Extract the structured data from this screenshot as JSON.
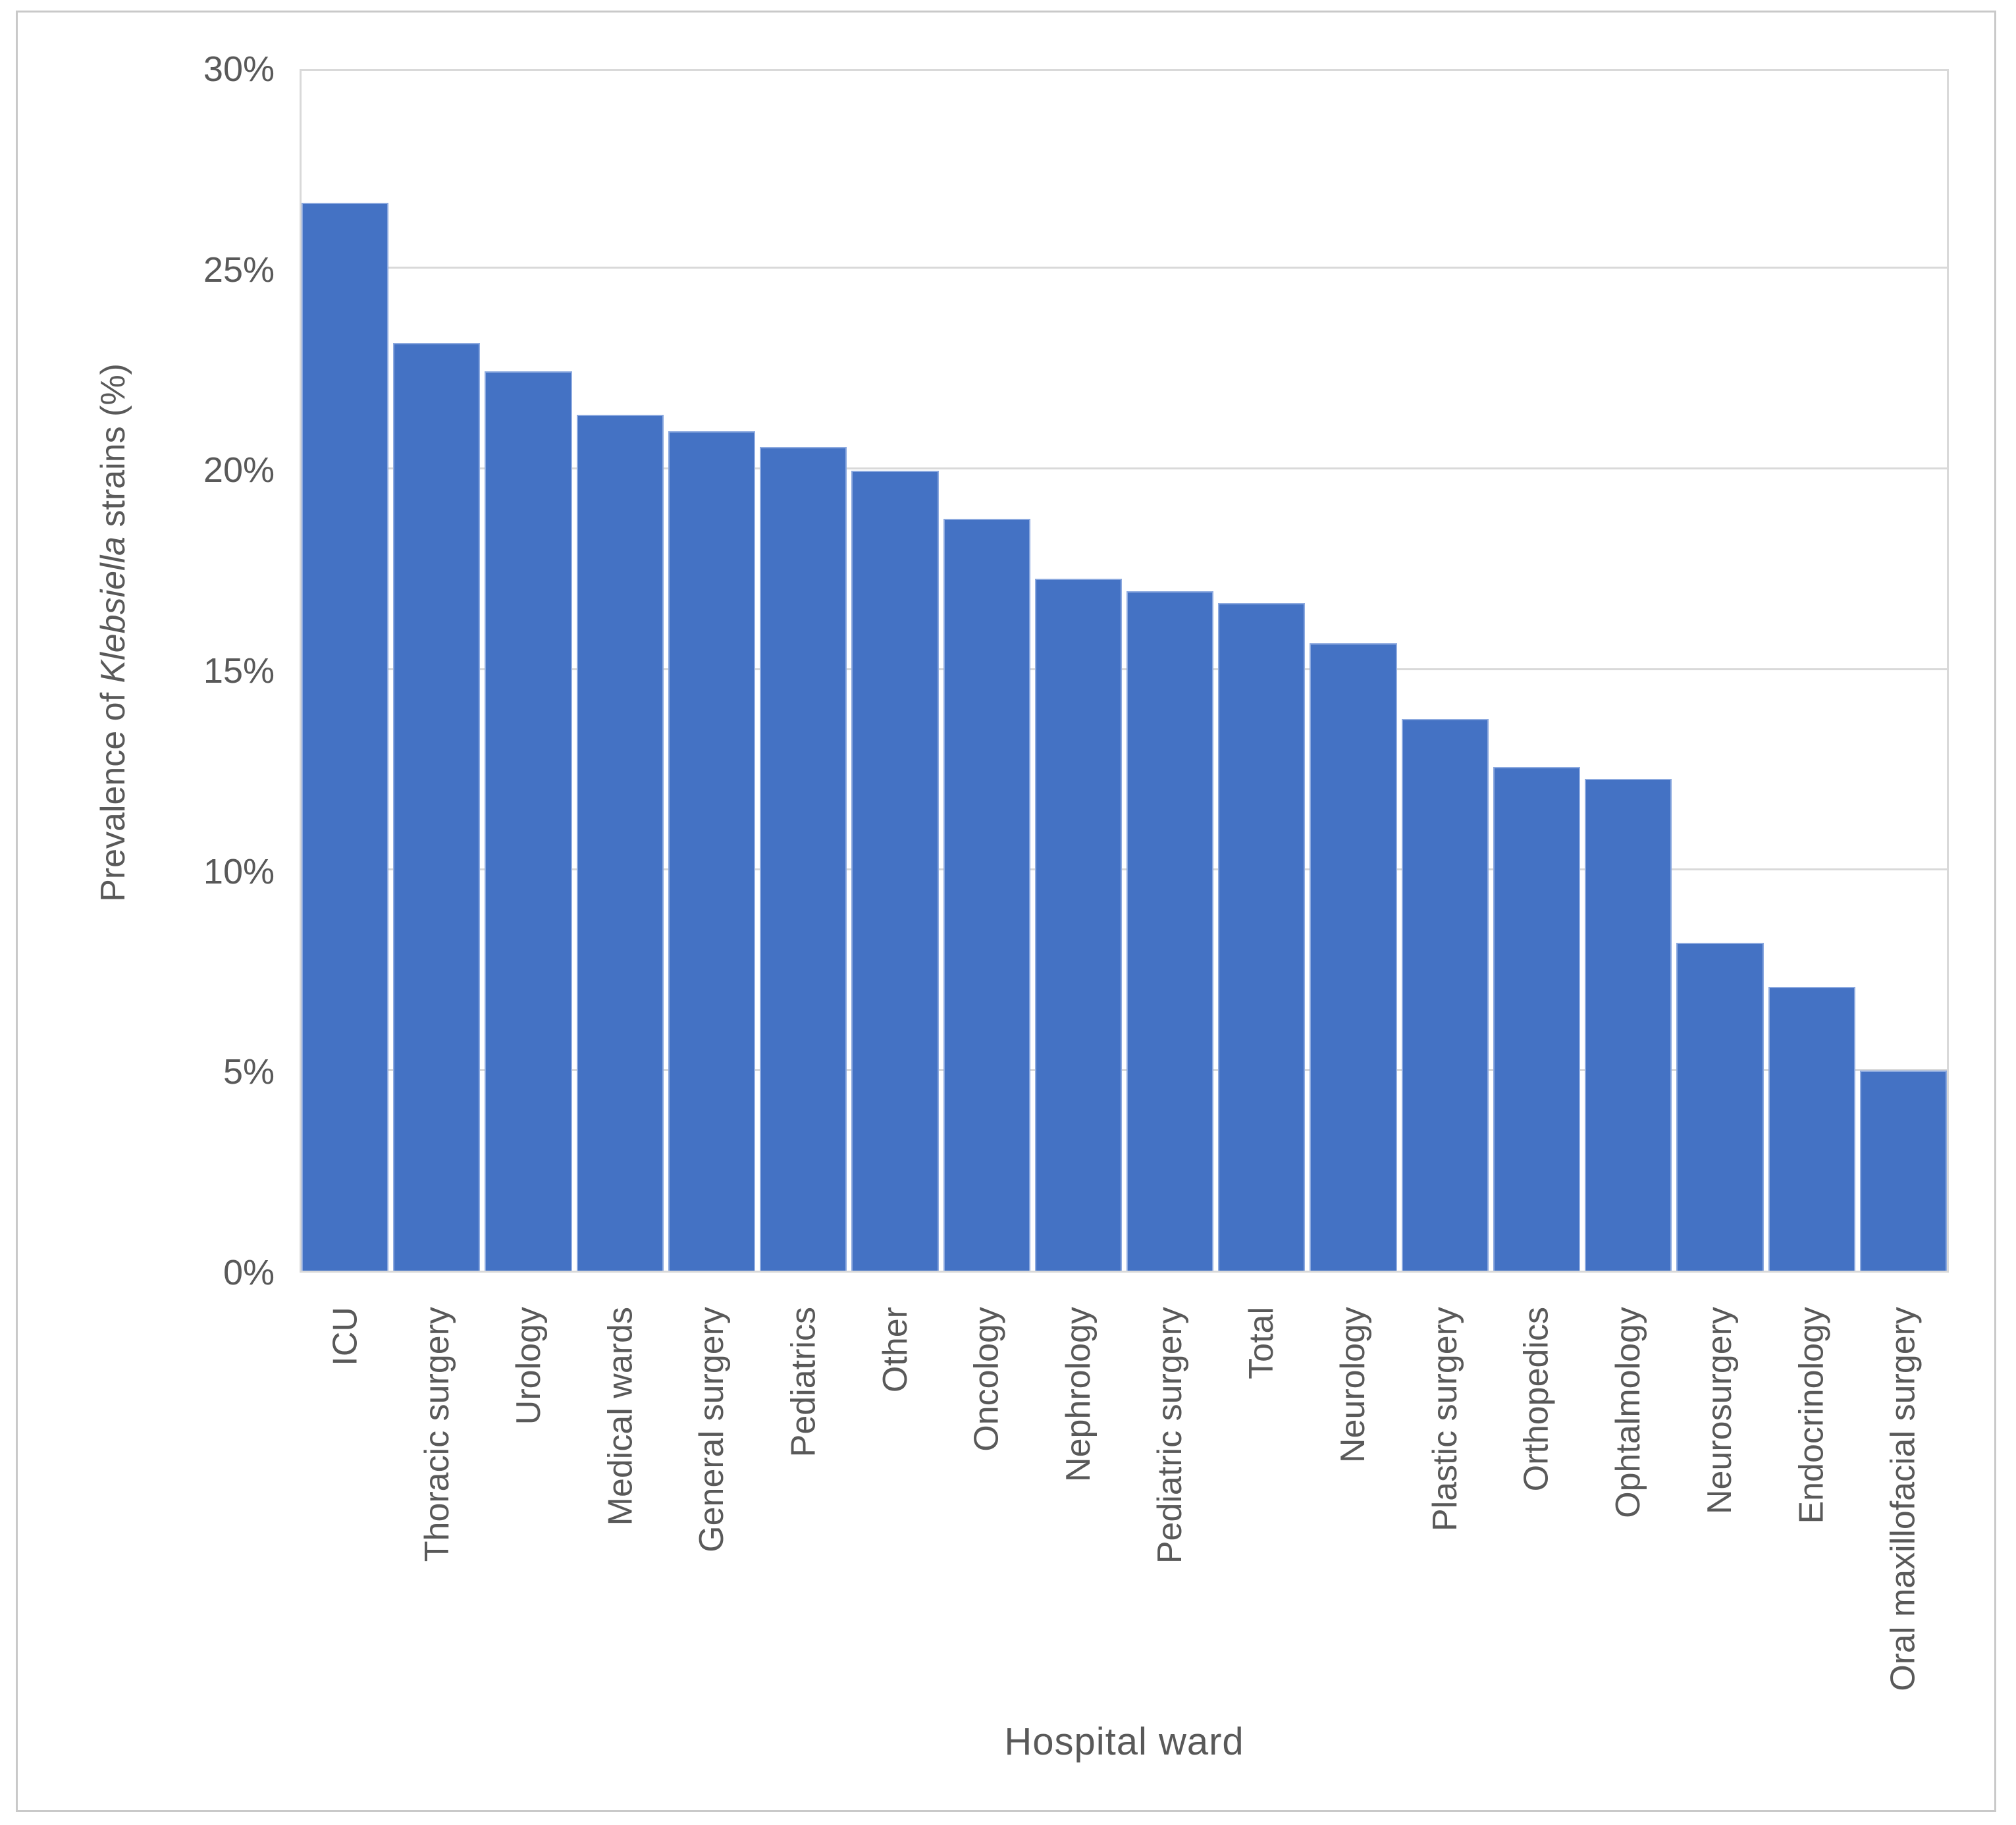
{
  "chart_data": {
    "type": "bar",
    "title": "",
    "xlabel": "Hospital ward",
    "ylabel": "Prevalence of Klebsiella strains (%)",
    "ylabel_parts": [
      {
        "text": "Prevalence of ",
        "italic": false
      },
      {
        "text": "Klebsiella",
        "italic": true
      },
      {
        "text": " strains (%)",
        "italic": false
      }
    ],
    "categories": [
      "ICU",
      "Thoracic surgery",
      "Urology",
      "Medical wards",
      "General surgery",
      "Pediatrics",
      "Other",
      "Oncology",
      "Nephrology",
      "Pediatric surgery",
      "Total",
      "Neurology",
      "Plastic surgery",
      "Orthopedics",
      "Ophtalmology",
      "Neurosurgery",
      "Endocrinology",
      "Oral maxillofacial surgery"
    ],
    "values": [
      26.7,
      23.2,
      22.5,
      21.4,
      21.0,
      20.6,
      20.0,
      18.8,
      17.3,
      17.0,
      16.7,
      15.7,
      13.8,
      12.6,
      12.3,
      8.2,
      7.1,
      5.0
    ],
    "value_format": "percent",
    "ylim": [
      0,
      30
    ],
    "yticks": [
      {
        "value": 0,
        "label": "0%"
      },
      {
        "value": 5,
        "label": "5%"
      },
      {
        "value": 10,
        "label": "10%"
      },
      {
        "value": 15,
        "label": "15%"
      },
      {
        "value": 20,
        "label": "20%"
      },
      {
        "value": 25,
        "label": "25%"
      },
      {
        "value": 30,
        "label": "30%"
      }
    ],
    "grid": "horizontal",
    "legend": "none",
    "bar_color": "#4472C4",
    "bar_edge_color": "#8CA9DF",
    "gridline_color": "#D9D9D9",
    "axis_text_color": "#595959",
    "outer_border_color": "#C9C9C9"
  }
}
